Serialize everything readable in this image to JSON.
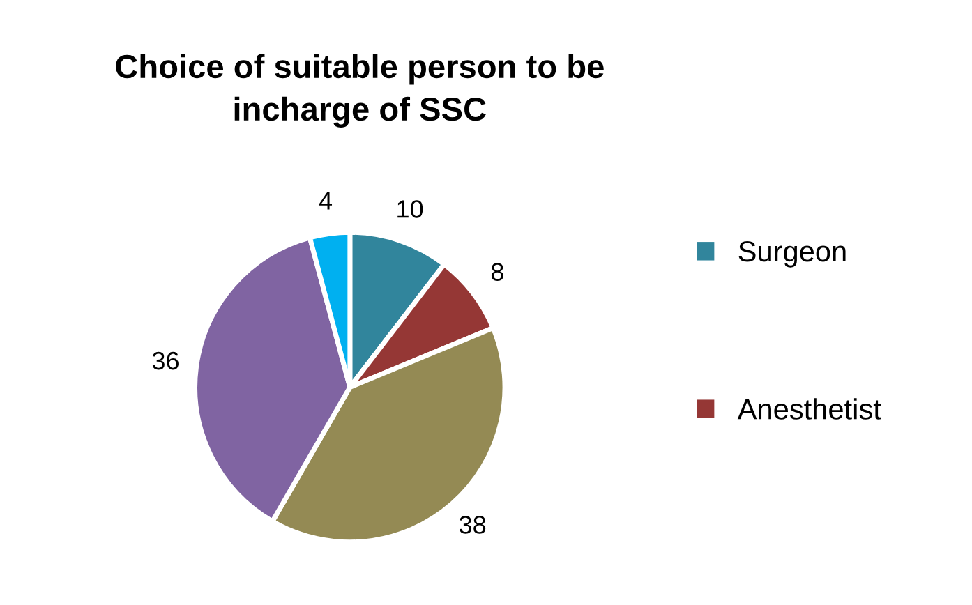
{
  "chart_data": {
    "type": "pie",
    "title": "Choice of suitable person to be\nincharge of SSC",
    "categories": [
      "Surgeon",
      "Anesthetist",
      null,
      null,
      null
    ],
    "values": [
      10,
      8,
      38,
      36,
      4
    ],
    "colors": [
      "#31859c",
      "#953735",
      "#948a54",
      "#8064a2",
      "#00b0f0"
    ],
    "data_labels": true,
    "legend": "right"
  }
}
